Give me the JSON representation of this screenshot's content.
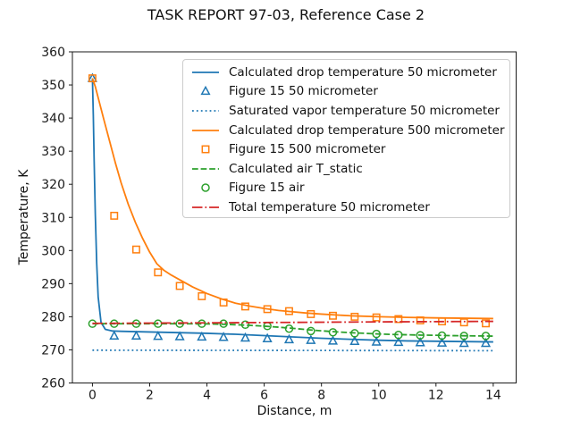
{
  "figure": {
    "title": "TASK REPORT 97-03, Reference Case 2"
  },
  "chart_data": {
    "type": "line",
    "title": "TASK REPORT 97-03, Reference Case 2",
    "xlabel": "Distance, m",
    "ylabel": "Temperature, K",
    "xlim": [
      -0.7,
      14.8
    ],
    "ylim": [
      260,
      360
    ],
    "xticks": [
      0,
      2,
      4,
      6,
      8,
      10,
      12,
      14
    ],
    "yticks": [
      260,
      270,
      280,
      290,
      300,
      310,
      320,
      330,
      340,
      350,
      360
    ],
    "grid": false,
    "legend_position": "upper right",
    "marker_x": [
      0,
      0.76,
      1.53,
      2.29,
      3.05,
      3.82,
      4.58,
      5.34,
      6.11,
      6.87,
      7.63,
      8.4,
      9.16,
      9.92,
      10.69,
      11.45,
      12.21,
      12.98,
      13.74
    ],
    "series": [
      {
        "name": "Calculated drop temperature 50 micrometer",
        "kind": "line",
        "style": "solid",
        "color": "#1f77b4",
        "x": [
          0,
          0.03,
          0.06,
          0.1,
          0.15,
          0.2,
          0.3,
          0.45,
          0.7,
          1,
          1.5,
          2,
          3,
          4,
          5,
          6,
          7,
          8,
          9,
          10,
          11,
          12,
          13,
          14
        ],
        "y": [
          352,
          341,
          327,
          311,
          296,
          286,
          278.3,
          276.2,
          275.7,
          275.6,
          275.5,
          275.4,
          275.2,
          275.0,
          274.7,
          274.3,
          273.9,
          273.5,
          273.2,
          272.9,
          272.7,
          272.6,
          272.5,
          272.4
        ]
      },
      {
        "name": "Figure 15 50 micrometer",
        "kind": "marker",
        "marker": "triangle",
        "color": "#1f77b4",
        "y": [
          352,
          274.2,
          274.2,
          274.1,
          274.0,
          273.9,
          273.8,
          273.6,
          273.4,
          273.1,
          272.9,
          272.7,
          272.6,
          272.4,
          272.3,
          272.2,
          272.1,
          272.0,
          272.0
        ]
      },
      {
        "name": "Saturated vapor temperature 50 micrometer",
        "kind": "line",
        "style": "dotted",
        "color": "#1f77b4",
        "x": [
          0,
          14
        ],
        "y": [
          269.9,
          269.75
        ]
      },
      {
        "name": "Calculated drop temperature 500 micrometer",
        "kind": "line",
        "style": "solid",
        "color": "#ff7f0e",
        "x": [
          0,
          0.1,
          0.25,
          0.4,
          0.6,
          0.8,
          1,
          1.25,
          1.5,
          1.75,
          2,
          2.25,
          2.5,
          2.75,
          3,
          3.5,
          4,
          4.5,
          5,
          5.5,
          6,
          6.5,
          7,
          7.5,
          8,
          9,
          10,
          11,
          12,
          13,
          14
        ],
        "y": [
          352,
          349.5,
          344.5,
          339.5,
          333,
          326.5,
          320.5,
          314,
          308.5,
          303.7,
          299.5,
          296,
          294,
          292.6,
          291.4,
          289,
          287,
          285.4,
          284.1,
          283.2,
          282.5,
          281.9,
          281.5,
          281.1,
          280.8,
          280.3,
          280.0,
          279.8,
          279.65,
          279.55,
          279.45
        ]
      },
      {
        "name": "Figure 15 500 micrometer",
        "kind": "marker",
        "marker": "square",
        "color": "#ff7f0e",
        "y": [
          352,
          310.5,
          300.3,
          293.4,
          289.3,
          286.2,
          284.3,
          283.1,
          282.3,
          281.7,
          280.8,
          280.3,
          280.0,
          279.8,
          279.3,
          278.9,
          278.6,
          278.3,
          278.0
        ]
      },
      {
        "name": "Calculated air T_static",
        "kind": "line",
        "style": "dashed",
        "color": "#2ca02c",
        "x": [
          0,
          1,
          2,
          3,
          4,
          4.5,
          5,
          5.5,
          6,
          6.5,
          7,
          7.5,
          8,
          8.5,
          9,
          9.5,
          10,
          10.5,
          11,
          11.5,
          12,
          12.5,
          13,
          13.5,
          14
        ],
        "y": [
          277.9,
          277.9,
          277.9,
          277.9,
          277.85,
          277.75,
          277.6,
          277.4,
          277.15,
          276.85,
          276.5,
          276.1,
          275.75,
          275.45,
          275.2,
          275.0,
          274.8,
          274.65,
          274.55,
          274.45,
          274.4,
          274.3,
          274.25,
          274.2,
          274.15
        ]
      },
      {
        "name": "Figure 15 air",
        "kind": "marker",
        "marker": "circle",
        "color": "#2ca02c",
        "y": [
          277.9,
          277.9,
          277.9,
          277.9,
          277.9,
          277.9,
          277.9,
          277.6,
          277.2,
          276.4,
          275.7,
          275.3,
          275.0,
          274.8,
          274.5,
          274.4,
          274.3,
          274.2,
          274.2
        ]
      },
      {
        "name": "Total temperature 50 micrometer",
        "kind": "line",
        "style": "dashdot",
        "color": "#d62728",
        "x": [
          0,
          5,
          10,
          14
        ],
        "y": [
          278.0,
          278.2,
          278.45,
          278.6
        ]
      }
    ]
  },
  "colors": {
    "blue": "#1f77b4",
    "orange": "#ff7f0e",
    "green": "#2ca02c",
    "red": "#d62728",
    "axis": "#1a1a1a",
    "legend_border": "#cccccc"
  }
}
